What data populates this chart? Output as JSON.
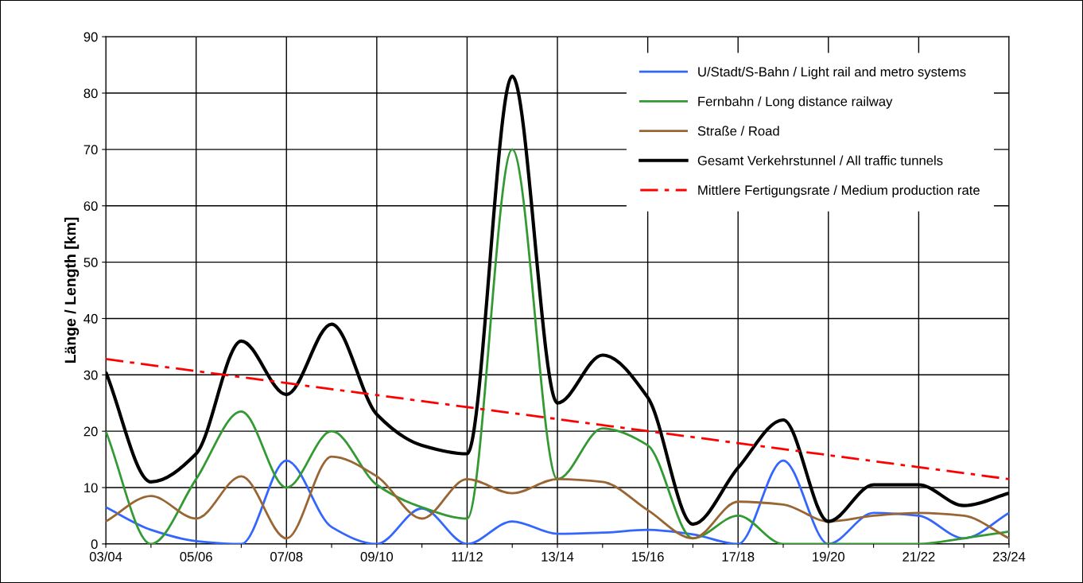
{
  "chart_data": {
    "type": "line",
    "ylabel": "Länge / Length [km]",
    "categories": [
      "03/04",
      null,
      "05/06",
      null,
      "07/08",
      null,
      "09/10",
      null,
      "11/12",
      null,
      "13/14",
      null,
      "15/16",
      null,
      "17/18",
      null,
      "19/20",
      null,
      "21/22",
      null,
      "23/24"
    ],
    "series": [
      {
        "name": "U/Stadt/S-Bahn / Light rail and metro systems",
        "color": "#3366ff",
        "values": [
          6.5,
          2.5,
          0.5,
          0,
          14.8,
          3,
          0,
          6.3,
          0,
          4,
          1.8,
          2,
          2.5,
          1.7,
          0,
          14.8,
          0,
          5.5,
          5,
          1,
          5.5
        ]
      },
      {
        "name": "Fernbahn / Long distance railway",
        "color": "#339933",
        "values": [
          20,
          0,
          11.5,
          23.5,
          10,
          20,
          10.5,
          6.5,
          4.5,
          70,
          11.5,
          20.5,
          17.5,
          1,
          5,
          0,
          0,
          0,
          0,
          1,
          2.2
        ]
      },
      {
        "name": "Straße / Road",
        "color": "#996633",
        "values": [
          4,
          8.5,
          4.5,
          12,
          1,
          15.5,
          12,
          4.5,
          11.5,
          9,
          11.5,
          11,
          6,
          1,
          7.5,
          7,
          4,
          5,
          5.5,
          5,
          1
        ]
      },
      {
        "name": "Gesamt Verkehrstunnel / All traffic tunnels",
        "color": "#000000",
        "values": [
          30.5,
          11,
          16,
          36,
          26.5,
          39,
          23,
          17.5,
          16,
          83,
          25,
          33.5,
          26,
          3.5,
          13.5,
          22,
          4,
          10.5,
          10.5,
          6.8,
          9
        ]
      },
      {
        "name": "Mittlere Fertigungsrate / Medium production rate",
        "color": "#ff0000",
        "line_style": "dashdot",
        "values": [
          32.8,
          null,
          null,
          null,
          null,
          null,
          null,
          null,
          null,
          null,
          null,
          null,
          null,
          null,
          null,
          null,
          null,
          null,
          null,
          null,
          11.5
        ]
      }
    ],
    "ylim": [
      0,
      90
    ],
    "yticks": [
      0,
      10,
      20,
      30,
      40,
      50,
      60,
      70,
      80,
      90
    ],
    "grid": true,
    "legend": "top right"
  }
}
